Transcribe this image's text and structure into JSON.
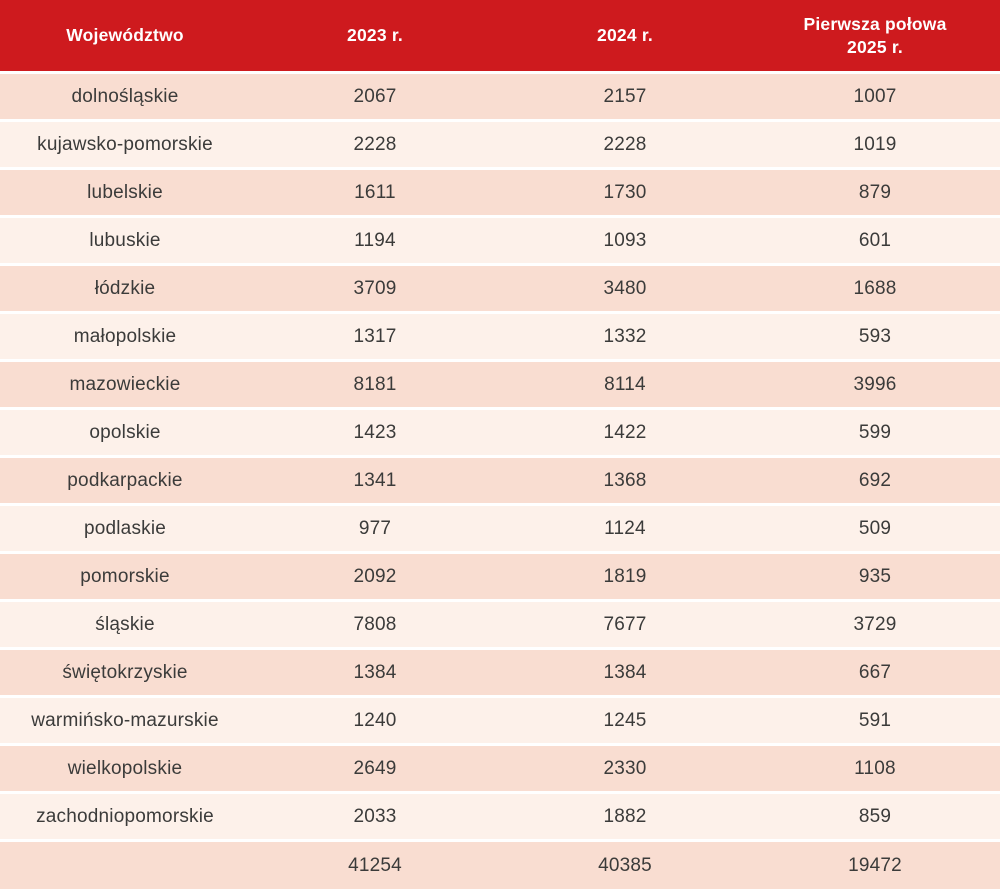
{
  "colors": {
    "header_bg": "#ce1a1e",
    "header_text": "#ffffff",
    "row_dark": "#f9ddd1",
    "row_light": "#fdf1ea",
    "separator": "#ffffff",
    "body_text": "#3b3b3a"
  },
  "chart_data": {
    "type": "table",
    "columns": [
      "Województwo",
      "2023 r.",
      "2024 r.",
      "Pierwsza połowa 2025 r."
    ],
    "rows": [
      {
        "wojewodztwo": "dolnośląskie",
        "y2023": 2067,
        "y2024": 2157,
        "h1_2025": 1007
      },
      {
        "wojewodztwo": "kujawsko-pomorskie",
        "y2023": 2228,
        "y2024": 2228,
        "h1_2025": 1019
      },
      {
        "wojewodztwo": "lubelskie",
        "y2023": 1611,
        "y2024": 1730,
        "h1_2025": 879
      },
      {
        "wojewodztwo": "lubuskie",
        "y2023": 1194,
        "y2024": 1093,
        "h1_2025": 601
      },
      {
        "wojewodztwo": "łódzkie",
        "y2023": 3709,
        "y2024": 3480,
        "h1_2025": 1688
      },
      {
        "wojewodztwo": "małopolskie",
        "y2023": 1317,
        "y2024": 1332,
        "h1_2025": 593
      },
      {
        "wojewodztwo": "mazowieckie",
        "y2023": 8181,
        "y2024": 8114,
        "h1_2025": 3996
      },
      {
        "wojewodztwo": "opolskie",
        "y2023": 1423,
        "y2024": 1422,
        "h1_2025": 599
      },
      {
        "wojewodztwo": "podkarpackie",
        "y2023": 1341,
        "y2024": 1368,
        "h1_2025": 692
      },
      {
        "wojewodztwo": "podlaskie",
        "y2023": 977,
        "y2024": 1124,
        "h1_2025": 509
      },
      {
        "wojewodztwo": "pomorskie",
        "y2023": 2092,
        "y2024": 1819,
        "h1_2025": 935
      },
      {
        "wojewodztwo": "śląskie",
        "y2023": 7808,
        "y2024": 7677,
        "h1_2025": 3729
      },
      {
        "wojewodztwo": "świętokrzyskie",
        "y2023": 1384,
        "y2024": 1384,
        "h1_2025": 667
      },
      {
        "wojewodztwo": "warmińsko-mazurskie",
        "y2023": 1240,
        "y2024": 1245,
        "h1_2025": 591
      },
      {
        "wojewodztwo": "wielkopolskie",
        "y2023": 2649,
        "y2024": 2330,
        "h1_2025": 1108
      },
      {
        "wojewodztwo": "zachodniopomorskie",
        "y2023": 2033,
        "y2024": 1882,
        "h1_2025": 859
      }
    ],
    "total_row": {
      "wojewodztwo": "",
      "y2023": 41254,
      "y2024": 40385,
      "h1_2025": 19472
    }
  }
}
